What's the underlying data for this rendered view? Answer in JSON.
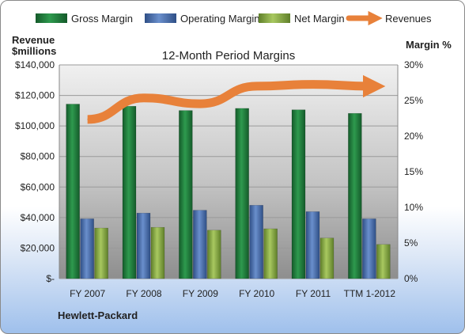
{
  "chart_data": {
    "type": "bar",
    "title": "12-Month Period Margins",
    "company": "Hewlett-Packard",
    "y_left_label_line1": "Revenue",
    "y_left_label_line2": "$millions",
    "y_right_label": "Margin %",
    "categories": [
      "FY 2007",
      "FY 2008",
      "FY 2009",
      "FY 2010",
      "FY 2011",
      "TTM 1-2012"
    ],
    "y_left_lim": [
      0,
      140000
    ],
    "y_left_ticks": [
      "$-",
      "$20,000",
      "$40,000",
      "$60,000",
      "$80,000",
      "$100,000",
      "$120,000",
      "$140,000"
    ],
    "y_right_lim": [
      0,
      30
    ],
    "y_right_ticks": [
      "0%",
      "5%",
      "10%",
      "15%",
      "20%",
      "25%",
      "30%"
    ],
    "legend_position": "top",
    "series": [
      {
        "name": "Gross Margin",
        "axis": "right",
        "color": "#1f7a3c",
        "values": [
          24.5,
          24.2,
          23.6,
          23.9,
          23.7,
          23.2
        ]
      },
      {
        "name": "Operating Margin",
        "axis": "right",
        "color": "#4a6fae",
        "values": [
          8.4,
          9.2,
          9.6,
          10.3,
          9.4,
          8.4
        ]
      },
      {
        "name": "Net Margin",
        "axis": "right",
        "color": "#8fb04a",
        "values": [
          7.1,
          7.2,
          6.8,
          7.0,
          5.7,
          4.8
        ]
      },
      {
        "name": "Revenues",
        "axis": "left",
        "type": "line",
        "color": "#e8813a",
        "values": [
          104286,
          118364,
          114552,
          126033,
          127245,
          126000
        ]
      }
    ]
  }
}
